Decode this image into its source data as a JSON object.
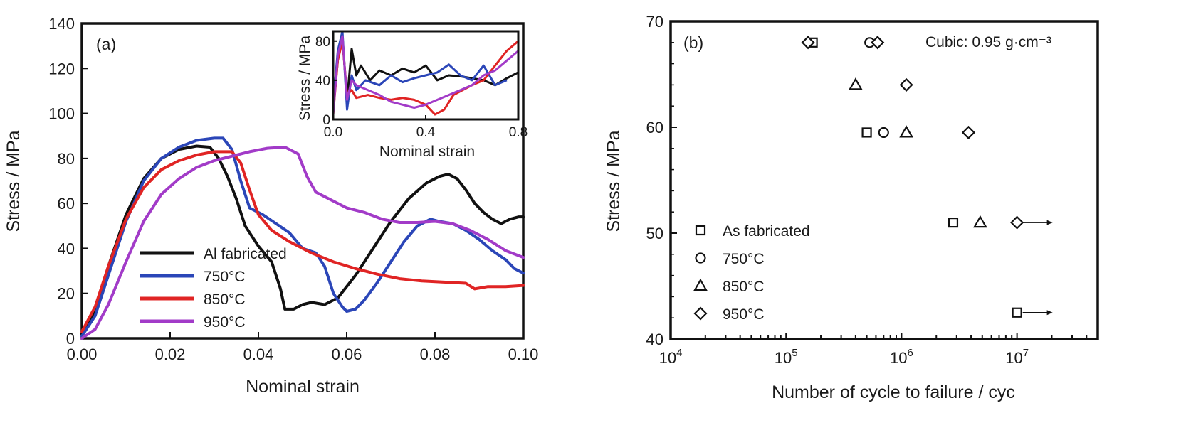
{
  "chart_data": [
    {
      "type": "line",
      "panel_label": "(a)",
      "xlabel": "Nominal strain",
      "ylabel": "Stress / MPa",
      "xlim": [
        0.0,
        0.1
      ],
      "ylim": [
        0,
        140
      ],
      "xticks": [
        "0.00",
        "0.02",
        "0.04",
        "0.06",
        "0.08",
        "0.10"
      ],
      "yticks": [
        "0",
        "20",
        "40",
        "60",
        "80",
        "100",
        "120",
        "140"
      ],
      "legend": "bottom-left",
      "series": [
        {
          "name": "Al fabricated",
          "color": "#111111",
          "x": [
            0,
            0.003,
            0.006,
            0.01,
            0.014,
            0.018,
            0.022,
            0.026,
            0.029,
            0.031,
            0.033,
            0.035,
            0.037,
            0.04,
            0.043,
            0.045,
            0.046,
            0.048,
            0.05,
            0.052,
            0.055,
            0.058,
            0.062,
            0.066,
            0.07,
            0.074,
            0.078,
            0.081,
            0.083,
            0.085,
            0.087,
            0.089,
            0.091,
            0.093,
            0.095,
            0.097,
            0.099,
            0.1
          ],
          "y": [
            2,
            12,
            32,
            55,
            71,
            80,
            84,
            85.5,
            85,
            80,
            72,
            62,
            50,
            41,
            34,
            22,
            13,
            13,
            15,
            16,
            15,
            18,
            28,
            40,
            52,
            62,
            69,
            72,
            73,
            71,
            66,
            60,
            56,
            53,
            51,
            53,
            54,
            54
          ]
        },
        {
          "name": "750°C",
          "color": "#2b46b8",
          "x": [
            0,
            0.003,
            0.006,
            0.01,
            0.014,
            0.018,
            0.022,
            0.026,
            0.03,
            0.032,
            0.034,
            0.036,
            0.038,
            0.041,
            0.044,
            0.047,
            0.05,
            0.053,
            0.055,
            0.057,
            0.059,
            0.06,
            0.062,
            0.064,
            0.067,
            0.07,
            0.073,
            0.076,
            0.079,
            0.081,
            0.084,
            0.087,
            0.09,
            0.093,
            0.096,
            0.098,
            0.1
          ],
          "y": [
            1,
            10,
            28,
            52,
            70,
            80,
            85,
            88,
            89,
            89,
            84,
            70,
            58,
            55,
            51,
            47,
            40,
            38,
            32,
            20,
            14,
            12,
            13,
            17,
            25,
            34,
            43,
            50,
            53,
            52,
            51,
            48,
            44,
            39,
            35,
            31,
            29
          ]
        },
        {
          "name": "850°C",
          "color": "#e02424",
          "x": [
            0,
            0.003,
            0.006,
            0.01,
            0.014,
            0.018,
            0.022,
            0.026,
            0.03,
            0.034,
            0.036,
            0.038,
            0.04,
            0.043,
            0.047,
            0.052,
            0.057,
            0.062,
            0.067,
            0.072,
            0.077,
            0.082,
            0.087,
            0.089,
            0.092,
            0.096,
            0.1
          ],
          "y": [
            3,
            14,
            32,
            53,
            67,
            75,
            79,
            81.5,
            83,
            83,
            78,
            66,
            55,
            48,
            43,
            38,
            34,
            31,
            28.5,
            26.5,
            25.5,
            25,
            24.5,
            22,
            23,
            23,
            23.5
          ]
        },
        {
          "name": "950°C",
          "color": "#a23bc8",
          "x": [
            0,
            0.003,
            0.006,
            0.01,
            0.014,
            0.018,
            0.022,
            0.026,
            0.03,
            0.034,
            0.038,
            0.042,
            0.046,
            0.049,
            0.051,
            0.053,
            0.056,
            0.06,
            0.064,
            0.068,
            0.072,
            0.076,
            0.08,
            0.084,
            0.088,
            0.092,
            0.096,
            0.1
          ],
          "y": [
            0,
            4,
            15,
            34,
            52,
            64,
            71,
            76,
            79,
            81,
            83,
            84.5,
            85,
            82,
            72,
            65,
            62,
            58,
            56,
            53,
            51.5,
            51.5,
            52,
            51,
            48,
            44,
            39,
            36
          ]
        }
      ],
      "inset": {
        "xlabel": "Nominal strain",
        "ylabel": "Stress / MPa",
        "xlim": [
          0.0,
          0.8
        ],
        "ylim": [
          0,
          90
        ],
        "xticks": [
          "0.0",
          "0.4",
          "0.8"
        ],
        "yticks": [
          "0",
          "40",
          "80"
        ],
        "series": [
          {
            "name": "Al fabricated",
            "color": "#111111",
            "x": [
              0,
              0.02,
              0.04,
              0.06,
              0.08,
              0.1,
              0.12,
              0.16,
              0.2,
              0.25,
              0.3,
              0.35,
              0.4,
              0.45,
              0.5,
              0.55,
              0.6,
              0.65,
              0.7,
              0.75,
              0.8
            ],
            "y": [
              10,
              60,
              85,
              20,
              72,
              45,
              55,
              40,
              50,
              45,
              52,
              48,
              55,
              40,
              45,
              44,
              42,
              40,
              35,
              42,
              48
            ]
          },
          {
            "name": "750°C",
            "color": "#2b46b8",
            "x": [
              0,
              0.02,
              0.04,
              0.06,
              0.08,
              0.1,
              0.14,
              0.2,
              0.25,
              0.3,
              0.35,
              0.4,
              0.45,
              0.5,
              0.55,
              0.6,
              0.65,
              0.7,
              0.75
            ],
            "y": [
              15,
              70,
              90,
              10,
              45,
              30,
              40,
              35,
              45,
              38,
              42,
              45,
              48,
              56,
              45,
              40,
              55,
              35,
              40
            ]
          },
          {
            "name": "850°C",
            "color": "#e02424",
            "x": [
              0,
              0.02,
              0.04,
              0.06,
              0.08,
              0.1,
              0.15,
              0.2,
              0.25,
              0.3,
              0.35,
              0.4,
              0.44,
              0.48,
              0.52,
              0.56,
              0.6,
              0.65,
              0.7,
              0.75,
              0.8
            ],
            "y": [
              5,
              60,
              80,
              25,
              30,
              22,
              25,
              22,
              20,
              22,
              20,
              15,
              5,
              10,
              25,
              30,
              35,
              40,
              55,
              70,
              80
            ]
          },
          {
            "name": "950°C",
            "color": "#a23bc8",
            "x": [
              0,
              0.02,
              0.04,
              0.06,
              0.08,
              0.1,
              0.15,
              0.2,
              0.25,
              0.3,
              0.35,
              0.4,
              0.45,
              0.5,
              0.55,
              0.6,
              0.65,
              0.7,
              0.75,
              0.8
            ],
            "y": [
              5,
              65,
              85,
              20,
              40,
              35,
              30,
              25,
              18,
              15,
              12,
              15,
              20,
              25,
              30,
              35,
              45,
              50,
              60,
              70
            ]
          }
        ]
      }
    },
    {
      "type": "scatter",
      "panel_label": "(b)",
      "annotation": "Cubic: 0.95 g·cm⁻³",
      "xlabel": "Number of cycle to failure / cyc",
      "ylabel": "Stress / MPa",
      "xscale": "log",
      "xlim": [
        10000,
        50000000
      ],
      "ylim": [
        40,
        70
      ],
      "xticks": [
        {
          "value": 10000,
          "base": "10",
          "exp": "4"
        },
        {
          "value": 100000,
          "base": "10",
          "exp": "5"
        },
        {
          "value": 1000000,
          "base": "10",
          "exp": "6"
        },
        {
          "value": 10000000,
          "base": "10",
          "exp": "7"
        }
      ],
      "yticks": [
        "40",
        "50",
        "60",
        "70"
      ],
      "legend": "bottom-left",
      "series": [
        {
          "name": "As fabricated",
          "marker": "square",
          "points": [
            [
              170000,
              68
            ],
            [
              500000,
              59.5
            ],
            [
              2800000,
              51
            ],
            [
              10000000,
              42.5
            ]
          ],
          "runout_arrows": [
            [
              10000000,
              42.5
            ]
          ]
        },
        {
          "name": "750°C",
          "marker": "circle",
          "points": [
            [
              530000,
              68
            ],
            [
              700000,
              59.5
            ]
          ]
        },
        {
          "name": "850°C",
          "marker": "triangle",
          "points": [
            [
              400000,
              64
            ],
            [
              1100000,
              59.5
            ],
            [
              4800000,
              51
            ]
          ]
        },
        {
          "name": "950°C",
          "marker": "diamond",
          "points": [
            [
              155000,
              68
            ],
            [
              620000,
              68
            ],
            [
              1100000,
              64
            ],
            [
              3800000,
              59.5
            ],
            [
              10000000,
              51
            ]
          ],
          "runout_arrows": [
            [
              10000000,
              51
            ]
          ]
        }
      ]
    }
  ]
}
